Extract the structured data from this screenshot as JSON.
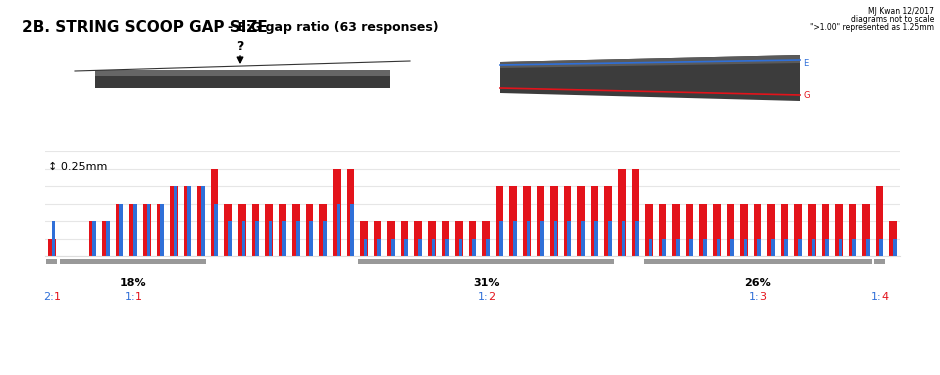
{
  "chart_data": {
    "type": "bar",
    "title": "2B. STRING SCOOP GAP SIZE",
    "subtitle": "- E:G gap ratio (63 responses)",
    "notes": [
      "MJ Kwan 12/2017",
      "diagrams not to scale",
      "\">1.00\" represented as 1.25mm"
    ],
    "diagram_labels": {
      "gap": "?",
      "string_e": "E",
      "string_g": "G"
    },
    "scale_label": "↕ 0.25mm",
    "categories": [
      null,
      null,
      null,
      null,
      null,
      null,
      null,
      null,
      null,
      null,
      null,
      null,
      null,
      null,
      null,
      null,
      null,
      null,
      null,
      null,
      null,
      null,
      null,
      null,
      null,
      null,
      null,
      null,
      null,
      null,
      null,
      null,
      null,
      null,
      null,
      null,
      null,
      null,
      null,
      null,
      null,
      null,
      null,
      null,
      null,
      null,
      null,
      null,
      null,
      null,
      null,
      null,
      null,
      null,
      null,
      null,
      null,
      null,
      null,
      null,
      null,
      null,
      null
    ],
    "series": [
      {
        "name": "E",
        "color": "#2f6fd8",
        "values": [
          0.5,
          0,
          0,
          0.5,
          0.5,
          0.75,
          0.75,
          0.75,
          0.75,
          1.0,
          1.0,
          1.0,
          0.75,
          0.5,
          0.5,
          0.5,
          0.5,
          0.5,
          0.5,
          0.5,
          0.5,
          0.75,
          0.75,
          0.25,
          0.25,
          0.25,
          0.25,
          0.25,
          0.25,
          0.25,
          0.25,
          0.25,
          0.25,
          0.5,
          0.5,
          0.5,
          0.5,
          0.5,
          0.5,
          0.5,
          0.5,
          0.5,
          0.5,
          0.5,
          0.25,
          0.25,
          0.25,
          0.25,
          0.25,
          0.25,
          0.25,
          0.25,
          0.25,
          0.25,
          0.25,
          0.25,
          0.25,
          0.25,
          0.25,
          0.25,
          0.25,
          0.25,
          0.25
        ]
      },
      {
        "name": "G",
        "color": "#e3131b",
        "values": [
          0.25,
          0,
          0,
          0.5,
          0.5,
          0.75,
          0.75,
          0.75,
          0.75,
          1.0,
          1.0,
          1.0,
          1.25,
          0.75,
          0.75,
          0.75,
          0.75,
          0.75,
          0.75,
          0.75,
          0.75,
          1.25,
          1.25,
          0.5,
          0.5,
          0.5,
          0.5,
          0.5,
          0.5,
          0.5,
          0.5,
          0.5,
          0.5,
          1.0,
          1.0,
          1.0,
          1.0,
          1.0,
          1.0,
          1.0,
          1.0,
          1.0,
          1.25,
          1.25,
          0.75,
          0.75,
          0.75,
          0.75,
          0.75,
          0.75,
          0.75,
          0.75,
          0.75,
          0.75,
          0.75,
          0.75,
          0.75,
          0.75,
          0.75,
          0.75,
          0.75,
          1.0,
          0.5
        ]
      }
    ],
    "groups": [
      {
        "ratio": "2:1",
        "start": 0,
        "end": 0
      },
      {
        "percent": "18%",
        "ratio": "1:1",
        "start": 1,
        "end": 11
      },
      {
        "percent": "31%",
        "ratio": "1:2",
        "start": 23,
        "end": 41
      },
      {
        "percent": "26%",
        "ratio": "1:3",
        "start": 44,
        "end": 60
      },
      {
        "ratio": "1:4",
        "start": 61,
        "end": 61
      }
    ],
    "ylim": [
      0,
      1.5
    ],
    "yticks": [
      0,
      0.25,
      0.5,
      0.75,
      1.0,
      1.25,
      1.5
    ],
    "grid": true,
    "tick_labels": false
  }
}
